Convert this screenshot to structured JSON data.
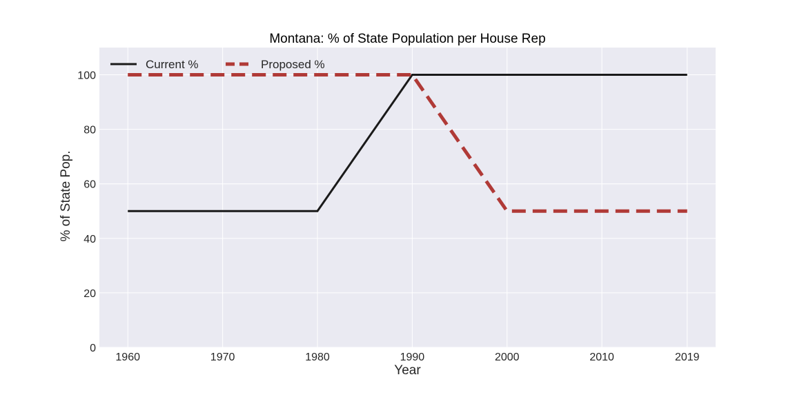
{
  "chart_data": {
    "type": "line",
    "title": "Montana: % of State Population per House Rep",
    "xlabel": "Year",
    "ylabel": "% of State Pop.",
    "x": [
      1960,
      1970,
      1980,
      1990,
      2000,
      2010,
      2019
    ],
    "x_ticks": [
      "1960",
      "1970",
      "1980",
      "1990",
      "2000",
      "2010",
      "2019"
    ],
    "y_ticks": [
      "0",
      "20",
      "40",
      "60",
      "80",
      "100"
    ],
    "ylim": [
      0,
      110
    ],
    "grid": true,
    "legend_placement": "top-left",
    "series": [
      {
        "name": "Current %",
        "values": [
          50,
          50,
          50,
          100,
          100,
          100,
          100
        ],
        "color": "#1a1a1a",
        "style": "solid"
      },
      {
        "name": "Proposed %",
        "values": [
          100,
          100,
          100,
          100,
          50,
          50,
          50
        ],
        "color": "#b03a37",
        "style": "dashed"
      }
    ],
    "background": "#eaeaf2",
    "gridline_color": "#ffffff"
  }
}
